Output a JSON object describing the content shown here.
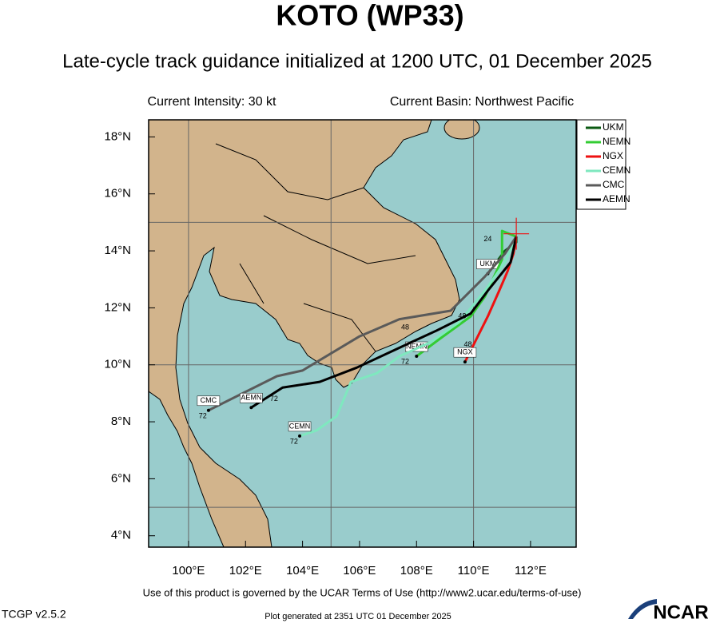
{
  "map": {
    "title": "KOTO (WP33)",
    "subtitle": "Late-cycle track guidance initialized at 1200 UTC, 01 December 2025",
    "intensity": "Current Intensity: 30 kt",
    "basin": "Current Basin: Northwest Pacific",
    "xlim": [
      98.6,
      113.6
    ],
    "ylim": [
      3.6,
      18.6
    ],
    "xticks": [
      {
        "value": 100,
        "label": "100°E"
      },
      {
        "value": 102,
        "label": "102°E"
      },
      {
        "value": 104,
        "label": "104°E"
      },
      {
        "value": 106,
        "label": "106°E"
      },
      {
        "value": 108,
        "label": "108°E"
      },
      {
        "value": 110,
        "label": "110°E"
      },
      {
        "value": 112,
        "label": "112°E"
      }
    ],
    "yticks": [
      {
        "value": 4,
        "label": "4°N"
      },
      {
        "value": 6,
        "label": "6°N"
      },
      {
        "value": 8,
        "label": "8°N"
      },
      {
        "value": 10,
        "label": "10°N"
      },
      {
        "value": 12,
        "label": "12°N"
      },
      {
        "value": 14,
        "label": "14°N"
      },
      {
        "value": 16,
        "label": "16°N"
      },
      {
        "value": 18,
        "label": "18°N"
      }
    ],
    "xgrid": [
      100,
      105,
      110
    ],
    "ygrid": [
      5,
      10,
      15
    ],
    "current_position": {
      "lon": 111.5,
      "lat": 14.6
    },
    "tracks": [
      {
        "name": "UKM",
        "color": "#0b5a12",
        "lon": [
          111.5,
          111.5,
          111.1,
          110.5
        ],
        "lat": [
          14.5,
          14.3,
          14.0,
          13.2
        ]
      },
      {
        "name": "NEMN",
        "color": "#33cc33",
        "lon": [
          111.5,
          111.0,
          111.0,
          110.4,
          109.9,
          108.8,
          108.0
        ],
        "lat": [
          14.5,
          14.7,
          13.7,
          12.4,
          11.7,
          10.9,
          10.3
        ]
      },
      {
        "name": "NGX",
        "color": "#ee1111",
        "lon": [
          111.5,
          111.4,
          111.2,
          110.9,
          110.5,
          110.1,
          109.7
        ],
        "lat": [
          14.5,
          13.9,
          13.3,
          12.6,
          11.7,
          10.9,
          10.1
        ]
      },
      {
        "name": "CEMN",
        "color": "#7fe8bf",
        "lon": [
          111.5,
          111.1,
          110.4,
          109.5,
          108.5,
          107.4,
          106.6,
          105.7,
          105.2,
          104.5,
          103.9
        ],
        "lat": [
          14.5,
          13.6,
          12.6,
          11.5,
          10.8,
          10.3,
          9.7,
          9.4,
          8.2,
          7.7,
          7.5
        ]
      },
      {
        "name": "CMC",
        "color": "#5a5a5a",
        "lon": [
          111.5,
          111.1,
          110.4,
          109.2,
          107.4,
          106.0,
          104.0,
          103.1,
          100.7
        ],
        "lat": [
          14.5,
          13.9,
          13.1,
          11.9,
          11.6,
          11.0,
          9.8,
          9.6,
          8.4
        ]
      },
      {
        "name": "AEMN",
        "color": "#000000",
        "lon": [
          111.5,
          111.3,
          110.5,
          109.9,
          108.7,
          107.4,
          105.9,
          104.6,
          103.3,
          102.2
        ],
        "lat": [
          14.5,
          13.6,
          12.6,
          11.8,
          11.2,
          10.6,
          9.9,
          9.4,
          9.2,
          8.5
        ]
      }
    ],
    "annotations": [
      {
        "text": "24",
        "lon": 110.5,
        "lat": 14.4
      },
      {
        "text": "48",
        "lon": 107.6,
        "lat": 11.3
      },
      {
        "text": "48",
        "lon": 109.6,
        "lat": 11.7
      },
      {
        "text": "48",
        "lon": 109.8,
        "lat": 10.7
      },
      {
        "text": "72",
        "lon": 107.6,
        "lat": 10.1
      },
      {
        "text": "72",
        "lon": 103.0,
        "lat": 8.8
      },
      {
        "text": "72",
        "lon": 100.5,
        "lat": 8.2
      },
      {
        "text": "72",
        "lon": 103.7,
        "lat": 7.3
      }
    ],
    "footer": "Use of this product is governed by the UCAR Terms of Use (http://www2.ucar.edu/terms-of-use)",
    "version": "TCGP v2.5.2",
    "generated": "Plot generated at 2351 UTC   01 December 2025",
    "logo": "NCAR"
  }
}
